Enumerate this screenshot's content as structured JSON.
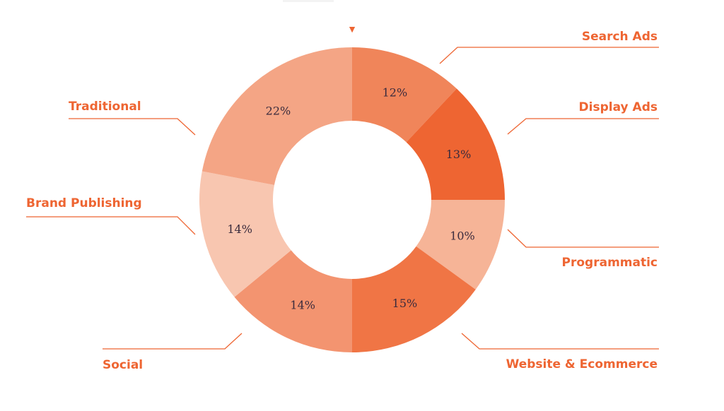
{
  "chart_data": {
    "type": "pie",
    "donut": true,
    "start_marker": "▼",
    "categories": [
      "Search Ads",
      "Display Ads",
      "Programmatic",
      "Website & Ecommerce",
      "Social",
      "Brand Publishing",
      "Traditional"
    ],
    "values": [
      12,
      13,
      10,
      15,
      14,
      14,
      22
    ],
    "value_labels": [
      "12%",
      "13%",
      "10%",
      "15%",
      "14%",
      "14%",
      "22%"
    ],
    "colors": [
      "#f0855a",
      "#ee6532",
      "#f6b497",
      "#f07545",
      "#f39470",
      "#f8c6b0",
      "#f4a585"
    ],
    "label_color": "#ee6532",
    "value_label_color": "#3a2b3d"
  }
}
